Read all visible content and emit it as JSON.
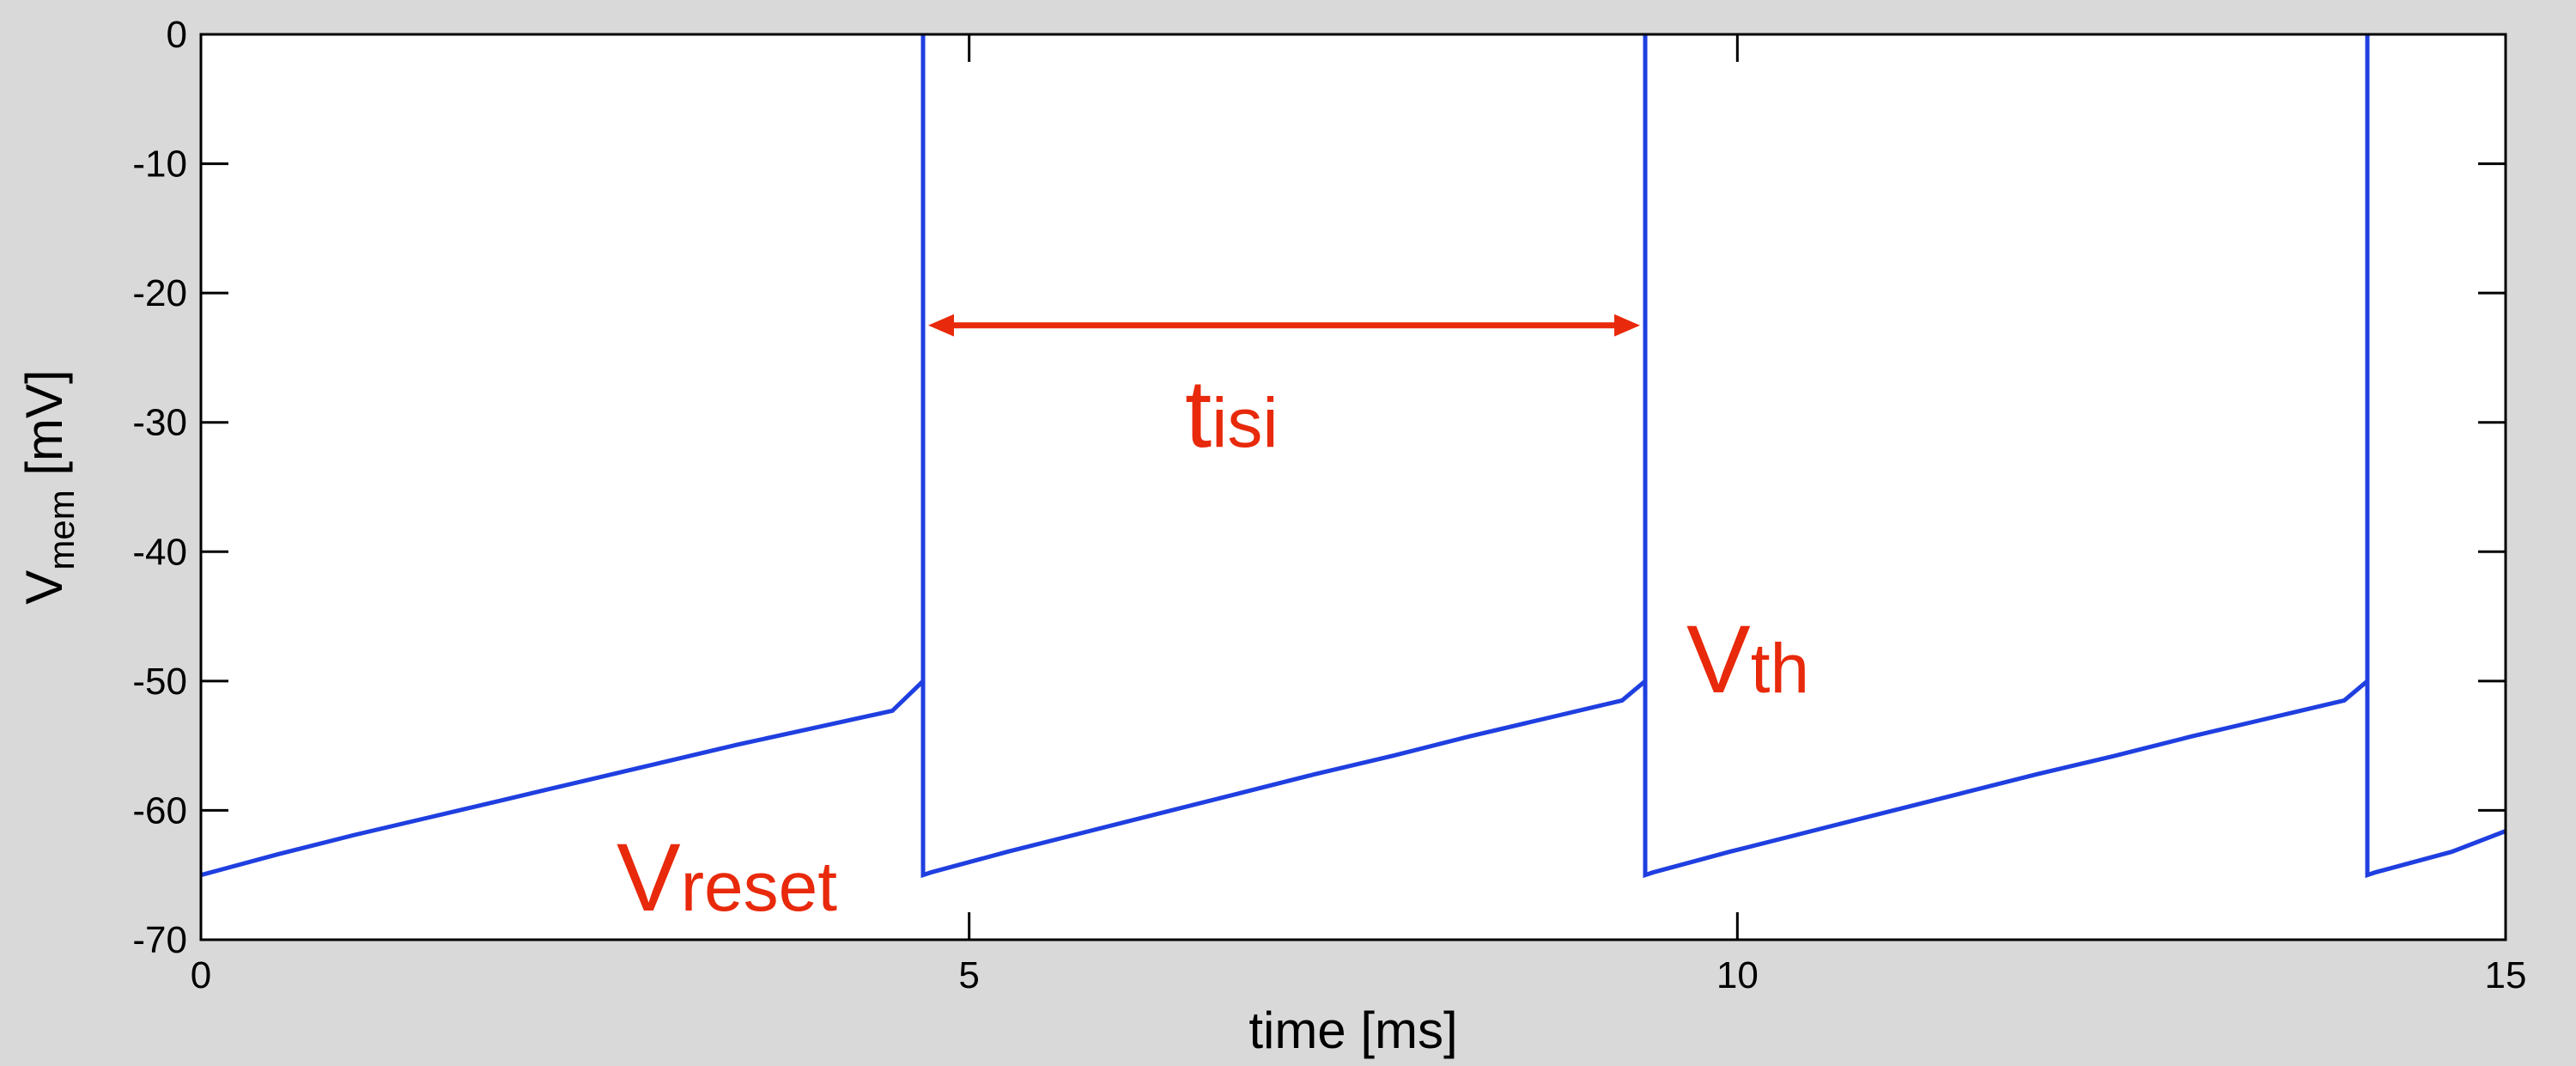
{
  "chart_data": {
    "type": "line",
    "title": "",
    "xlabel": "time [ms]",
    "ylabel_main": "V",
    "ylabel_sub": "mem",
    "ylabel_unit": " [mV]",
    "xlim": [
      0,
      15
    ],
    "ylim": [
      -70,
      0
    ],
    "xticks": [
      0,
      5,
      10,
      15
    ],
    "yticks": [
      0,
      -10,
      -20,
      -30,
      -40,
      -50,
      -60,
      -70
    ],
    "xtick_labels": [
      "0",
      "5",
      "10",
      "15"
    ],
    "ytick_labels": [
      "0",
      "-10",
      "-20",
      "-30",
      "-40",
      "-50",
      "-60",
      "-70"
    ],
    "grid": false,
    "series": [
      {
        "color": "#1f3fe0",
        "description": "integrate-and-fire membrane potential: charges from -65 toward threshold -50, spikes to 0, resets to -65",
        "x": [
          0,
          0.5,
          1,
          1.5,
          2,
          2.5,
          3,
          3.5,
          4,
          4.5,
          4.7,
          4.7,
          4.7,
          4.75,
          5.25,
          5.75,
          6.25,
          6.75,
          7.25,
          7.75,
          8.25,
          8.75,
          9.25,
          9.4,
          9.4,
          9.4,
          9.45,
          9.95,
          10.45,
          10.95,
          11.45,
          11.95,
          12.45,
          12.95,
          13.45,
          13.95,
          14.1,
          14.1,
          14.1,
          14.15,
          14.65,
          15
        ],
        "y": [
          -65,
          -63.4,
          -61.9,
          -60.5,
          -59.1,
          -57.7,
          -56.3,
          -54.9,
          -53.6,
          -52.3,
          -50,
          0,
          -65,
          -64.8,
          -63.2,
          -61.7,
          -60.2,
          -58.7,
          -57.2,
          -55.8,
          -54.3,
          -52.9,
          -51.5,
          -50,
          0,
          -65,
          -64.8,
          -63.2,
          -61.7,
          -60.2,
          -58.7,
          -57.2,
          -55.8,
          -54.3,
          -52.9,
          -51.5,
          -50,
          0,
          -65,
          -64.8,
          -63.2,
          -61.6
        ]
      }
    ],
    "annotations": {
      "tisi": {
        "main": "t",
        "sub": "isi",
        "arrow_from_x": 4.7,
        "arrow_to_x": 9.4,
        "arrow_y": -22.5
      },
      "vth": {
        "main": "V",
        "sub": "th"
      },
      "vreset": {
        "main": "V",
        "sub": "reset"
      },
      "color": "#e8290b"
    }
  }
}
